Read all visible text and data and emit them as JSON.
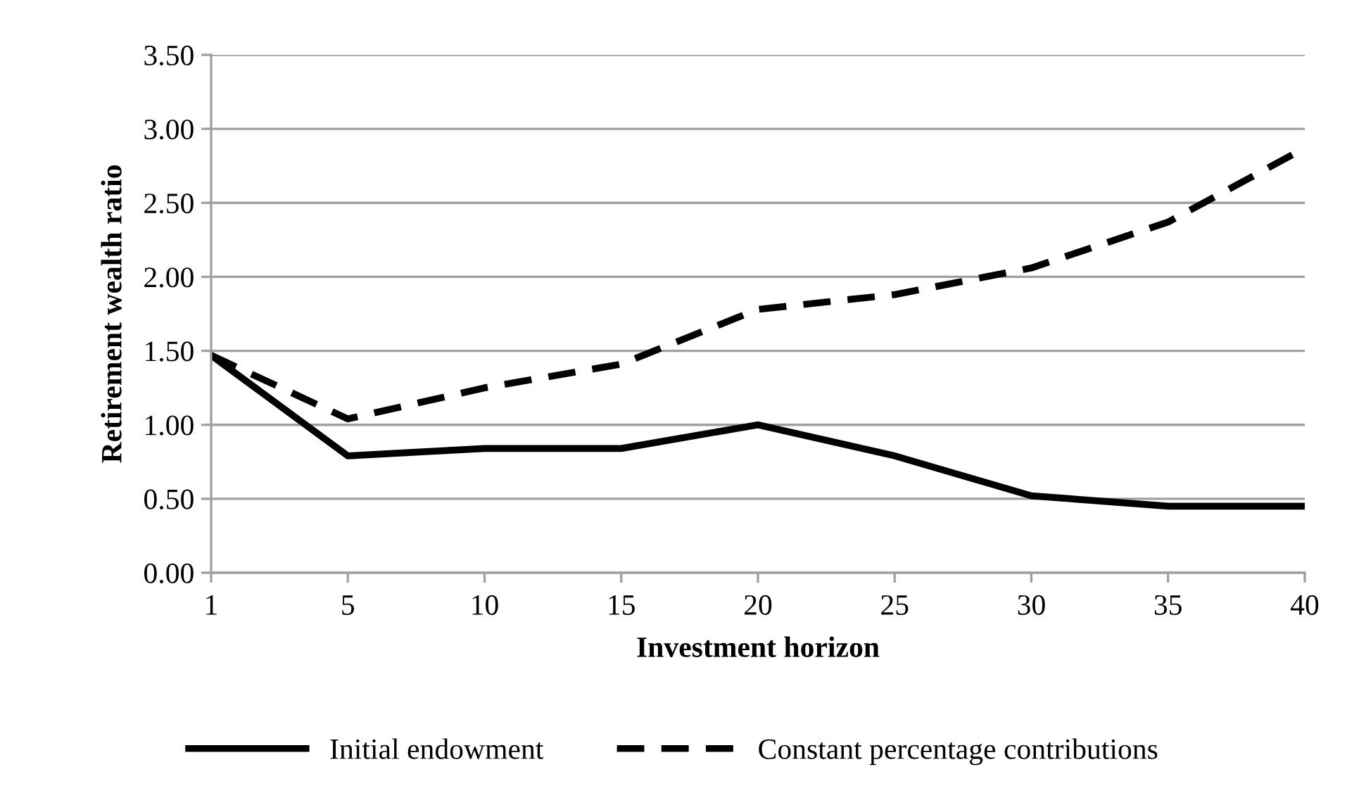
{
  "chart_data": {
    "type": "line",
    "xlabel": "Investment horizon",
    "ylabel": "Retirement wealth ratio",
    "categories": [
      "1",
      "5",
      "10",
      "15",
      "20",
      "25",
      "30",
      "35",
      "40"
    ],
    "series": [
      {
        "name": "Initial endowment",
        "color": "#000000",
        "line_style": "solid",
        "values": [
          1.47,
          0.79,
          0.84,
          0.84,
          1.0,
          0.79,
          0.52,
          0.45,
          0.45
        ]
      },
      {
        "name": "Constant percentage contributions",
        "color": "#000000",
        "line_style": "dashed",
        "values": [
          1.47,
          1.04,
          1.25,
          1.41,
          1.78,
          1.88,
          2.06,
          2.37,
          2.87
        ]
      }
    ],
    "ylim": [
      0,
      3.5
    ],
    "yticks": [
      {
        "value": 0,
        "label": "0.00"
      },
      {
        "value": 0.5,
        "label": "0.50"
      },
      {
        "value": 1,
        "label": "1.00"
      },
      {
        "value": 1.5,
        "label": "1.50"
      },
      {
        "value": 2,
        "label": "2.00"
      },
      {
        "value": 2.5,
        "label": "2.50"
      },
      {
        "value": 3,
        "label": "3.00"
      },
      {
        "value": 3.5,
        "label": "3.50"
      }
    ],
    "grid": "y",
    "legend": "bottom",
    "marker": "none"
  }
}
